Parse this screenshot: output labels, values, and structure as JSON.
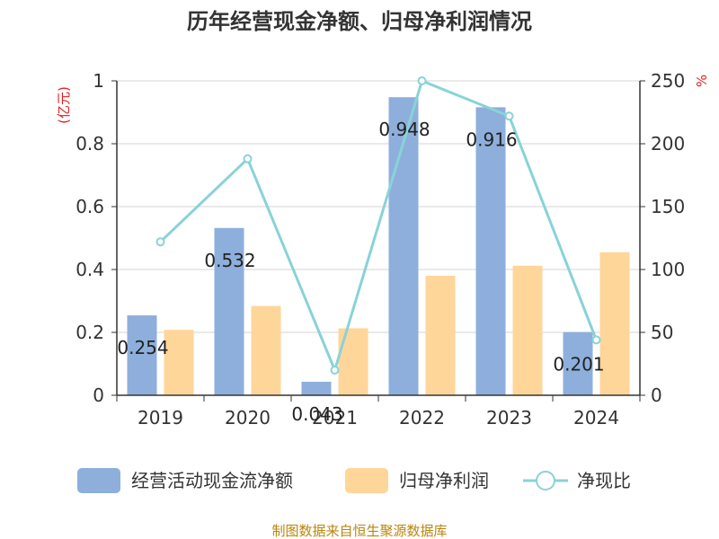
{
  "title": "历年经营现金净额、归母净利润情况",
  "left_unit": "(亿元)",
  "right_unit": "%",
  "source": "制图数据来自恒生聚源数据库",
  "colors": {
    "cash_flow": "#8eafdc",
    "net_profit": "#ffd699",
    "ratio_line": "#88d3d8",
    "unit_text": "#e02020",
    "source_text": "#b8860b"
  },
  "chart_data": {
    "type": "bar",
    "categories": [
      "2019",
      "2020",
      "2021",
      "2022",
      "2023",
      "2024"
    ],
    "series": [
      {
        "name": "经营活动现金流净额",
        "type": "bar",
        "axis": "left",
        "values": [
          0.254,
          0.532,
          0.043,
          0.948,
          0.916,
          0.201
        ],
        "labels": [
          "0.254",
          "0.532",
          "0.043",
          "0.948",
          "0.916",
          "0.201"
        ]
      },
      {
        "name": "归母净利润",
        "type": "bar",
        "axis": "left",
        "values": [
          0.208,
          0.284,
          0.213,
          0.38,
          0.412,
          0.455
        ]
      },
      {
        "name": "净现比",
        "type": "line",
        "axis": "right",
        "values": [
          122,
          188,
          20,
          250,
          222,
          44
        ]
      }
    ],
    "ylim": [
      0,
      1
    ],
    "yticks": [
      "0",
      "0.2",
      "0.4",
      "0.6",
      "0.8",
      "1"
    ],
    "y2lim": [
      0,
      250
    ],
    "y2ticks": [
      "0",
      "50",
      "100",
      "150",
      "200",
      "250"
    ],
    "grid": true,
    "legend_position": "bottom"
  }
}
